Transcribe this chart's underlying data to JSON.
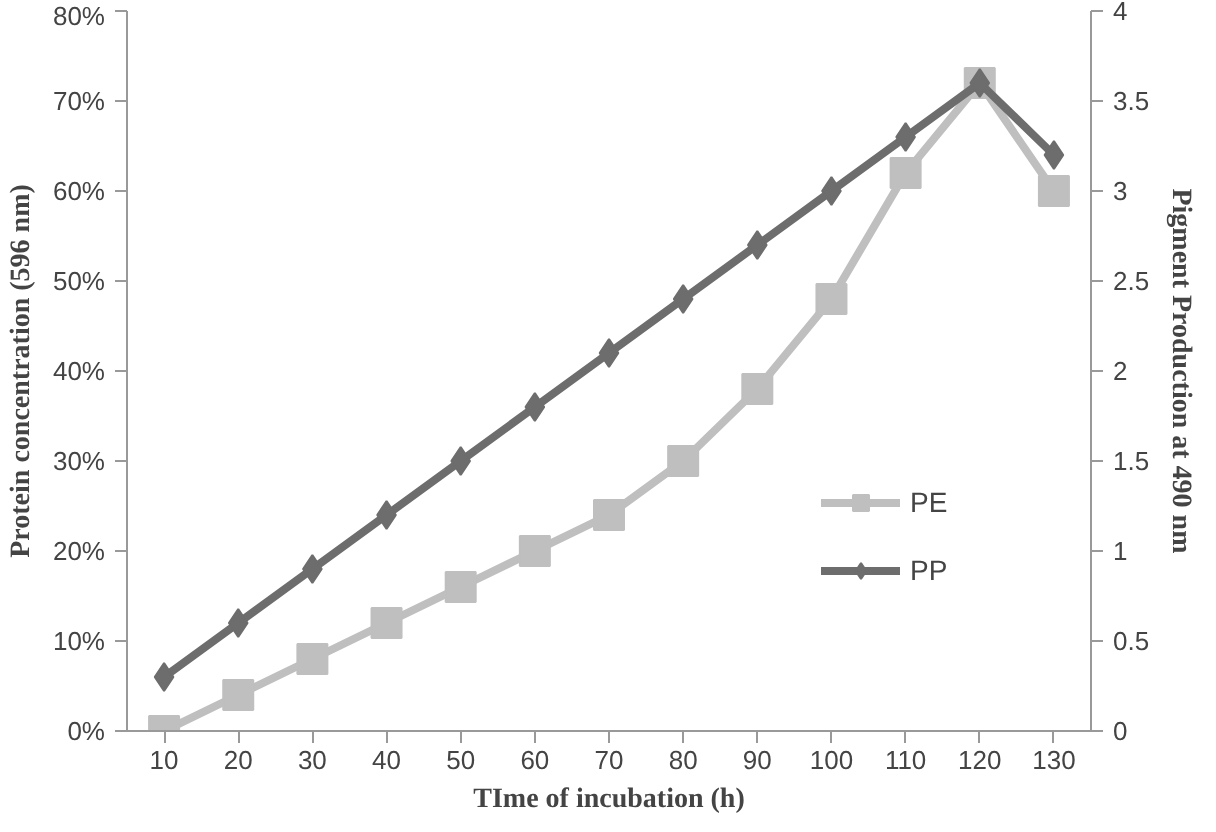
{
  "chart_data": {
    "type": "line",
    "xlabel": "TIme of incubation (h)",
    "ylabel": "Protein concentration (596 nm)",
    "y2label": "Pigment Production at 490 nm",
    "categories": [
      "10",
      "20",
      "30",
      "40",
      "50",
      "60",
      "70",
      "80",
      "90",
      "100",
      "110",
      "120",
      "130"
    ],
    "series": [
      {
        "name": "PE",
        "color": "#bfbfbf",
        "marker": "square",
        "values": [
          0,
          4,
          8,
          12,
          16,
          20,
          24,
          30,
          38,
          48,
          62,
          72,
          60
        ]
      },
      {
        "name": "PP",
        "color": "#6d6d6d",
        "marker": "diamond",
        "axis": "y2",
        "values": [
          0.3,
          0.6,
          0.9,
          1.2,
          1.5,
          1.8,
          2.1,
          2.4,
          2.7,
          3.0,
          3.3,
          3.6,
          3.2
        ]
      }
    ],
    "ylim": [
      0,
      80
    ],
    "yticks": [
      {
        "value": 0,
        "label": "0%"
      },
      {
        "value": 10,
        "label": "10%"
      },
      {
        "value": 20,
        "label": "20%"
      },
      {
        "value": 30,
        "label": "30%"
      },
      {
        "value": 40,
        "label": "40%"
      },
      {
        "value": 50,
        "label": "50%"
      },
      {
        "value": 60,
        "label": "60%"
      },
      {
        "value": 70,
        "label": "70%"
      },
      {
        "value": 80,
        "label": "80%"
      }
    ],
    "y2lim": [
      0,
      4
    ],
    "y2ticks": [
      0,
      0.5,
      1,
      1.5,
      2,
      2.5,
      3,
      3.5,
      4
    ],
    "grid": false,
    "legend": "bottom right",
    "line_style": "solid"
  }
}
